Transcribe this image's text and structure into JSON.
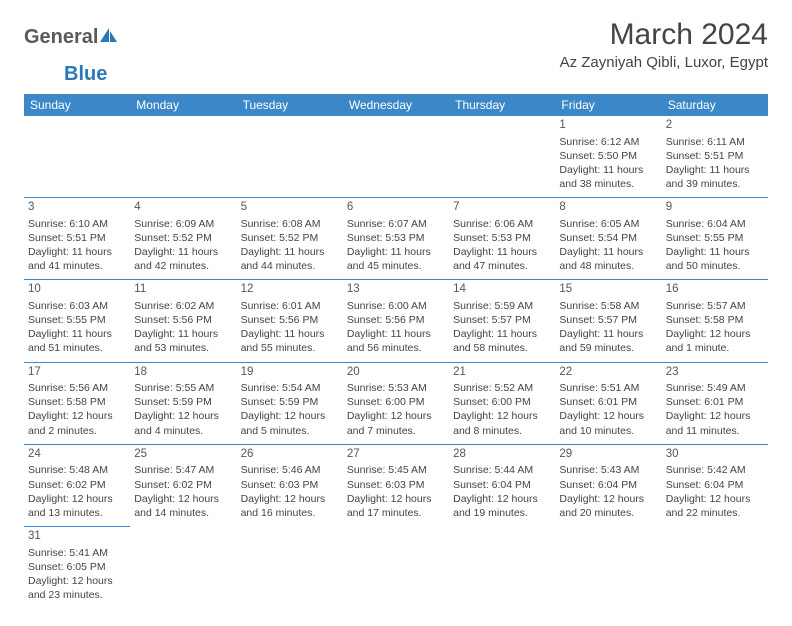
{
  "brand": {
    "part1": "General",
    "part2": "Blue"
  },
  "title": "March 2024",
  "location": "Az Zayniyah Qibli, Luxor, Egypt",
  "header_bg": "#3b87c8",
  "header_fg": "#ffffff",
  "border_color": "#3b87c8",
  "day_headers": [
    "Sunday",
    "Monday",
    "Tuesday",
    "Wednesday",
    "Thursday",
    "Friday",
    "Saturday"
  ],
  "weeks": [
    [
      null,
      null,
      null,
      null,
      null,
      {
        "n": "1",
        "sr": "Sunrise: 6:12 AM",
        "ss": "Sunset: 5:50 PM",
        "d1": "Daylight: 11 hours",
        "d2": "and 38 minutes."
      },
      {
        "n": "2",
        "sr": "Sunrise: 6:11 AM",
        "ss": "Sunset: 5:51 PM",
        "d1": "Daylight: 11 hours",
        "d2": "and 39 minutes."
      }
    ],
    [
      {
        "n": "3",
        "sr": "Sunrise: 6:10 AM",
        "ss": "Sunset: 5:51 PM",
        "d1": "Daylight: 11 hours",
        "d2": "and 41 minutes."
      },
      {
        "n": "4",
        "sr": "Sunrise: 6:09 AM",
        "ss": "Sunset: 5:52 PM",
        "d1": "Daylight: 11 hours",
        "d2": "and 42 minutes."
      },
      {
        "n": "5",
        "sr": "Sunrise: 6:08 AM",
        "ss": "Sunset: 5:52 PM",
        "d1": "Daylight: 11 hours",
        "d2": "and 44 minutes."
      },
      {
        "n": "6",
        "sr": "Sunrise: 6:07 AM",
        "ss": "Sunset: 5:53 PM",
        "d1": "Daylight: 11 hours",
        "d2": "and 45 minutes."
      },
      {
        "n": "7",
        "sr": "Sunrise: 6:06 AM",
        "ss": "Sunset: 5:53 PM",
        "d1": "Daylight: 11 hours",
        "d2": "and 47 minutes."
      },
      {
        "n": "8",
        "sr": "Sunrise: 6:05 AM",
        "ss": "Sunset: 5:54 PM",
        "d1": "Daylight: 11 hours",
        "d2": "and 48 minutes."
      },
      {
        "n": "9",
        "sr": "Sunrise: 6:04 AM",
        "ss": "Sunset: 5:55 PM",
        "d1": "Daylight: 11 hours",
        "d2": "and 50 minutes."
      }
    ],
    [
      {
        "n": "10",
        "sr": "Sunrise: 6:03 AM",
        "ss": "Sunset: 5:55 PM",
        "d1": "Daylight: 11 hours",
        "d2": "and 51 minutes."
      },
      {
        "n": "11",
        "sr": "Sunrise: 6:02 AM",
        "ss": "Sunset: 5:56 PM",
        "d1": "Daylight: 11 hours",
        "d2": "and 53 minutes."
      },
      {
        "n": "12",
        "sr": "Sunrise: 6:01 AM",
        "ss": "Sunset: 5:56 PM",
        "d1": "Daylight: 11 hours",
        "d2": "and 55 minutes."
      },
      {
        "n": "13",
        "sr": "Sunrise: 6:00 AM",
        "ss": "Sunset: 5:56 PM",
        "d1": "Daylight: 11 hours",
        "d2": "and 56 minutes."
      },
      {
        "n": "14",
        "sr": "Sunrise: 5:59 AM",
        "ss": "Sunset: 5:57 PM",
        "d1": "Daylight: 11 hours",
        "d2": "and 58 minutes."
      },
      {
        "n": "15",
        "sr": "Sunrise: 5:58 AM",
        "ss": "Sunset: 5:57 PM",
        "d1": "Daylight: 11 hours",
        "d2": "and 59 minutes."
      },
      {
        "n": "16",
        "sr": "Sunrise: 5:57 AM",
        "ss": "Sunset: 5:58 PM",
        "d1": "Daylight: 12 hours",
        "d2": "and 1 minute."
      }
    ],
    [
      {
        "n": "17",
        "sr": "Sunrise: 5:56 AM",
        "ss": "Sunset: 5:58 PM",
        "d1": "Daylight: 12 hours",
        "d2": "and 2 minutes."
      },
      {
        "n": "18",
        "sr": "Sunrise: 5:55 AM",
        "ss": "Sunset: 5:59 PM",
        "d1": "Daylight: 12 hours",
        "d2": "and 4 minutes."
      },
      {
        "n": "19",
        "sr": "Sunrise: 5:54 AM",
        "ss": "Sunset: 5:59 PM",
        "d1": "Daylight: 12 hours",
        "d2": "and 5 minutes."
      },
      {
        "n": "20",
        "sr": "Sunrise: 5:53 AM",
        "ss": "Sunset: 6:00 PM",
        "d1": "Daylight: 12 hours",
        "d2": "and 7 minutes."
      },
      {
        "n": "21",
        "sr": "Sunrise: 5:52 AM",
        "ss": "Sunset: 6:00 PM",
        "d1": "Daylight: 12 hours",
        "d2": "and 8 minutes."
      },
      {
        "n": "22",
        "sr": "Sunrise: 5:51 AM",
        "ss": "Sunset: 6:01 PM",
        "d1": "Daylight: 12 hours",
        "d2": "and 10 minutes."
      },
      {
        "n": "23",
        "sr": "Sunrise: 5:49 AM",
        "ss": "Sunset: 6:01 PM",
        "d1": "Daylight: 12 hours",
        "d2": "and 11 minutes."
      }
    ],
    [
      {
        "n": "24",
        "sr": "Sunrise: 5:48 AM",
        "ss": "Sunset: 6:02 PM",
        "d1": "Daylight: 12 hours",
        "d2": "and 13 minutes."
      },
      {
        "n": "25",
        "sr": "Sunrise: 5:47 AM",
        "ss": "Sunset: 6:02 PM",
        "d1": "Daylight: 12 hours",
        "d2": "and 14 minutes."
      },
      {
        "n": "26",
        "sr": "Sunrise: 5:46 AM",
        "ss": "Sunset: 6:03 PM",
        "d1": "Daylight: 12 hours",
        "d2": "and 16 minutes."
      },
      {
        "n": "27",
        "sr": "Sunrise: 5:45 AM",
        "ss": "Sunset: 6:03 PM",
        "d1": "Daylight: 12 hours",
        "d2": "and 17 minutes."
      },
      {
        "n": "28",
        "sr": "Sunrise: 5:44 AM",
        "ss": "Sunset: 6:04 PM",
        "d1": "Daylight: 12 hours",
        "d2": "and 19 minutes."
      },
      {
        "n": "29",
        "sr": "Sunrise: 5:43 AM",
        "ss": "Sunset: 6:04 PM",
        "d1": "Daylight: 12 hours",
        "d2": "and 20 minutes."
      },
      {
        "n": "30",
        "sr": "Sunrise: 5:42 AM",
        "ss": "Sunset: 6:04 PM",
        "d1": "Daylight: 12 hours",
        "d2": "and 22 minutes."
      }
    ],
    [
      {
        "n": "31",
        "sr": "Sunrise: 5:41 AM",
        "ss": "Sunset: 6:05 PM",
        "d1": "Daylight: 12 hours",
        "d2": "and 23 minutes."
      },
      null,
      null,
      null,
      null,
      null,
      null
    ]
  ]
}
